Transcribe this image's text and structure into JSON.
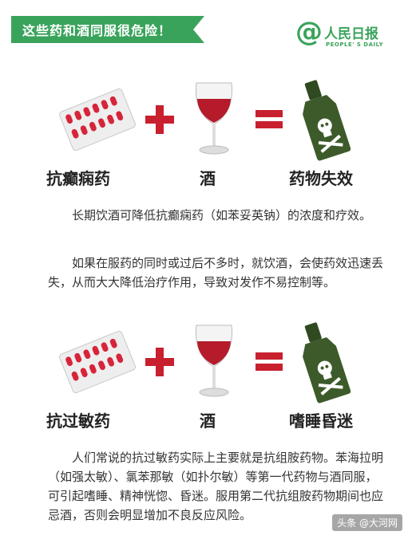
{
  "header": {
    "title": "这些药和酒同服很危险！"
  },
  "logo": {
    "at_symbol": "@",
    "name": "人民日报",
    "subtitle": "PEOPLE' S DAILY"
  },
  "equations": [
    {
      "drug_label": "抗癫痫药",
      "wine_label": "酒",
      "result_label": "药物失效"
    },
    {
      "drug_label": "抗过敏药",
      "wine_label": "酒",
      "result_label": "嗜睡昏迷"
    }
  ],
  "paragraphs": {
    "p1": "长期饮酒可降低抗癫痫药（如苯妥英钠）的浓度和疗效。",
    "p2": "如果在服药的同时或过后不多时，就饮酒，会使药效迅速丢失，从而大大降低治疗作用，导致对发作不易控制等。",
    "p3": "人们常说的抗过敏药实际上主要就是抗组胺药物。苯海拉明（如强太敏）、氯苯那敏（如扑尔敏）等第一代药物与酒同服，可引起嗜睡、精神恍惚、昏迷。服用第二代抗组胺药物期间也应忌酒，否则会明显增加不良反应风险。"
  },
  "watermark": "头条 @大河网",
  "colors": {
    "accent_green": "#3aa35b",
    "pill_red": "#d6253a",
    "wine_red": "#b51b2a",
    "bottle_green": "#3d5a2a"
  }
}
